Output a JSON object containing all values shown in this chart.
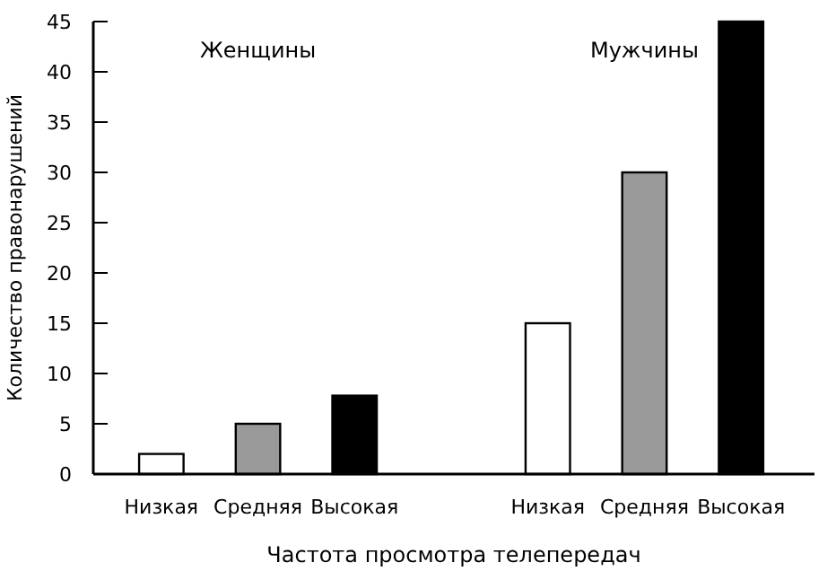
{
  "chart_data": {
    "type": "bar",
    "xlabel": "Частота просмотра телепередач",
    "ylabel": "Количество правонарушений",
    "categories": [
      "Низкая",
      "Средняя",
      "Высокая",
      null,
      "Низкая",
      "Средняя",
      "Высокая"
    ],
    "values": [
      2,
      5,
      7.8,
      null,
      15,
      30,
      45
    ],
    "colors": [
      "#ffffff",
      "#9a9a9a",
      "#000000",
      null,
      "#ffffff",
      "#9a9a9a",
      "#000000"
    ],
    "ylim": [
      0,
      45
    ],
    "yticks": [
      0,
      5,
      10,
      15,
      20,
      25,
      30,
      35,
      40,
      45
    ],
    "grid": false,
    "annotations": [
      "Женщины",
      "Мужчины"
    ]
  }
}
